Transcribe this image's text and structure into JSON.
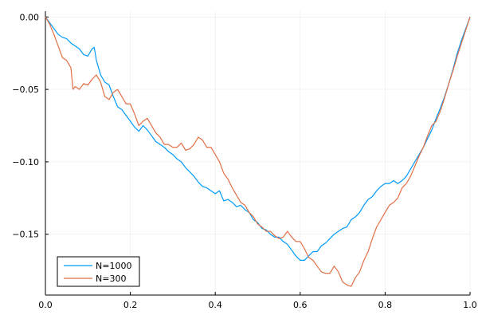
{
  "chart_data": {
    "type": "line",
    "title": "",
    "xlabel": "",
    "ylabel": "",
    "xlim": [
      0,
      1
    ],
    "ylim": [
      -0.192,
      0.004
    ],
    "grid": true,
    "legend_position": "bottom-left",
    "x_ticks": [
      0.0,
      0.2,
      0.4,
      0.6,
      0.8,
      1.0
    ],
    "x_tick_labels": [
      "0.0",
      "0.2",
      "0.4",
      "0.6",
      "0.8",
      "1.0"
    ],
    "y_ticks": [
      0.0,
      -0.05,
      -0.1,
      -0.15
    ],
    "y_tick_labels": [
      "0.00",
      "−0.05",
      "−0.10",
      "−0.15"
    ],
    "series": [
      {
        "name": "N=1000",
        "color": "#009AFA",
        "points": [
          [
            0.0,
            0.0
          ],
          [
            0.01,
            -0.004
          ],
          [
            0.02,
            -0.008
          ],
          [
            0.03,
            -0.012
          ],
          [
            0.04,
            -0.014
          ],
          [
            0.05,
            -0.015
          ],
          [
            0.06,
            -0.018
          ],
          [
            0.07,
            -0.02
          ],
          [
            0.08,
            -0.022
          ],
          [
            0.09,
            -0.026
          ],
          [
            0.1,
            -0.027
          ],
          [
            0.11,
            -0.022
          ],
          [
            0.115,
            -0.021
          ],
          [
            0.12,
            -0.03
          ],
          [
            0.13,
            -0.04
          ],
          [
            0.14,
            -0.045
          ],
          [
            0.15,
            -0.047
          ],
          [
            0.16,
            -0.055
          ],
          [
            0.17,
            -0.062
          ],
          [
            0.18,
            -0.064
          ],
          [
            0.19,
            -0.068
          ],
          [
            0.2,
            -0.072
          ],
          [
            0.21,
            -0.076
          ],
          [
            0.22,
            -0.079
          ],
          [
            0.23,
            -0.075
          ],
          [
            0.24,
            -0.078
          ],
          [
            0.25,
            -0.082
          ],
          [
            0.26,
            -0.086
          ],
          [
            0.27,
            -0.088
          ],
          [
            0.28,
            -0.09
          ],
          [
            0.29,
            -0.093
          ],
          [
            0.3,
            -0.095
          ],
          [
            0.31,
            -0.098
          ],
          [
            0.32,
            -0.1
          ],
          [
            0.33,
            -0.104
          ],
          [
            0.34,
            -0.107
          ],
          [
            0.35,
            -0.11
          ],
          [
            0.36,
            -0.114
          ],
          [
            0.37,
            -0.117
          ],
          [
            0.38,
            -0.118
          ],
          [
            0.39,
            -0.12
          ],
          [
            0.4,
            -0.122
          ],
          [
            0.41,
            -0.12
          ],
          [
            0.42,
            -0.127
          ],
          [
            0.43,
            -0.126
          ],
          [
            0.44,
            -0.128
          ],
          [
            0.45,
            -0.131
          ],
          [
            0.46,
            -0.13
          ],
          [
            0.47,
            -0.133
          ],
          [
            0.48,
            -0.135
          ],
          [
            0.49,
            -0.14
          ],
          [
            0.5,
            -0.142
          ],
          [
            0.51,
            -0.146
          ],
          [
            0.52,
            -0.147
          ],
          [
            0.53,
            -0.15
          ],
          [
            0.54,
            -0.152
          ],
          [
            0.55,
            -0.152
          ],
          [
            0.56,
            -0.155
          ],
          [
            0.57,
            -0.157
          ],
          [
            0.58,
            -0.161
          ],
          [
            0.59,
            -0.165
          ],
          [
            0.6,
            -0.168
          ],
          [
            0.61,
            -0.168
          ],
          [
            0.62,
            -0.165
          ],
          [
            0.63,
            -0.162
          ],
          [
            0.64,
            -0.162
          ],
          [
            0.65,
            -0.158
          ],
          [
            0.66,
            -0.156
          ],
          [
            0.67,
            -0.153
          ],
          [
            0.68,
            -0.15
          ],
          [
            0.69,
            -0.148
          ],
          [
            0.7,
            -0.146
          ],
          [
            0.71,
            -0.145
          ],
          [
            0.72,
            -0.14
          ],
          [
            0.73,
            -0.138
          ],
          [
            0.74,
            -0.135
          ],
          [
            0.75,
            -0.13
          ],
          [
            0.76,
            -0.126
          ],
          [
            0.77,
            -0.124
          ],
          [
            0.78,
            -0.12
          ],
          [
            0.79,
            -0.117
          ],
          [
            0.8,
            -0.115
          ],
          [
            0.81,
            -0.115
          ],
          [
            0.82,
            -0.113
          ],
          [
            0.83,
            -0.115
          ],
          [
            0.84,
            -0.113
          ],
          [
            0.85,
            -0.11
          ],
          [
            0.86,
            -0.105
          ],
          [
            0.87,
            -0.1
          ],
          [
            0.88,
            -0.095
          ],
          [
            0.89,
            -0.09
          ],
          [
            0.9,
            -0.084
          ],
          [
            0.91,
            -0.078
          ],
          [
            0.92,
            -0.07
          ],
          [
            0.93,
            -0.063
          ],
          [
            0.94,
            -0.055
          ],
          [
            0.95,
            -0.046
          ],
          [
            0.96,
            -0.036
          ],
          [
            0.97,
            -0.025
          ],
          [
            0.98,
            -0.016
          ],
          [
            0.99,
            -0.008
          ],
          [
            1.0,
            0.0
          ]
        ]
      },
      {
        "name": "N=300",
        "color": "#E26F46",
        "points": [
          [
            0.0,
            0.0
          ],
          [
            0.01,
            -0.005
          ],
          [
            0.02,
            -0.012
          ],
          [
            0.03,
            -0.02
          ],
          [
            0.04,
            -0.028
          ],
          [
            0.05,
            -0.03
          ],
          [
            0.06,
            -0.035
          ],
          [
            0.065,
            -0.05
          ],
          [
            0.07,
            -0.048
          ],
          [
            0.08,
            -0.05
          ],
          [
            0.09,
            -0.046
          ],
          [
            0.1,
            -0.047
          ],
          [
            0.11,
            -0.043
          ],
          [
            0.12,
            -0.04
          ],
          [
            0.13,
            -0.045
          ],
          [
            0.14,
            -0.055
          ],
          [
            0.15,
            -0.057
          ],
          [
            0.16,
            -0.052
          ],
          [
            0.17,
            -0.05
          ],
          [
            0.18,
            -0.055
          ],
          [
            0.19,
            -0.06
          ],
          [
            0.2,
            -0.06
          ],
          [
            0.21,
            -0.067
          ],
          [
            0.22,
            -0.075
          ],
          [
            0.23,
            -0.072
          ],
          [
            0.24,
            -0.07
          ],
          [
            0.25,
            -0.075
          ],
          [
            0.26,
            -0.08
          ],
          [
            0.27,
            -0.083
          ],
          [
            0.28,
            -0.088
          ],
          [
            0.29,
            -0.088
          ],
          [
            0.3,
            -0.09
          ],
          [
            0.31,
            -0.09
          ],
          [
            0.32,
            -0.087
          ],
          [
            0.33,
            -0.092
          ],
          [
            0.34,
            -0.091
          ],
          [
            0.35,
            -0.088
          ],
          [
            0.36,
            -0.083
          ],
          [
            0.37,
            -0.085
          ],
          [
            0.38,
            -0.09
          ],
          [
            0.39,
            -0.09
          ],
          [
            0.4,
            -0.095
          ],
          [
            0.41,
            -0.1
          ],
          [
            0.42,
            -0.108
          ],
          [
            0.43,
            -0.112
          ],
          [
            0.44,
            -0.118
          ],
          [
            0.45,
            -0.123
          ],
          [
            0.46,
            -0.128
          ],
          [
            0.47,
            -0.13
          ],
          [
            0.48,
            -0.135
          ],
          [
            0.49,
            -0.138
          ],
          [
            0.5,
            -0.143
          ],
          [
            0.51,
            -0.145
          ],
          [
            0.52,
            -0.148
          ],
          [
            0.53,
            -0.148
          ],
          [
            0.54,
            -0.151
          ],
          [
            0.55,
            -0.153
          ],
          [
            0.56,
            -0.152
          ],
          [
            0.57,
            -0.148
          ],
          [
            0.58,
            -0.152
          ],
          [
            0.59,
            -0.155
          ],
          [
            0.6,
            -0.155
          ],
          [
            0.61,
            -0.16
          ],
          [
            0.62,
            -0.166
          ],
          [
            0.63,
            -0.168
          ],
          [
            0.64,
            -0.172
          ],
          [
            0.65,
            -0.176
          ],
          [
            0.66,
            -0.177
          ],
          [
            0.67,
            -0.177
          ],
          [
            0.68,
            -0.172
          ],
          [
            0.69,
            -0.176
          ],
          [
            0.7,
            -0.183
          ],
          [
            0.71,
            -0.185
          ],
          [
            0.72,
            -0.186
          ],
          [
            0.73,
            -0.18
          ],
          [
            0.74,
            -0.176
          ],
          [
            0.75,
            -0.168
          ],
          [
            0.76,
            -0.162
          ],
          [
            0.77,
            -0.153
          ],
          [
            0.78,
            -0.145
          ],
          [
            0.79,
            -0.14
          ],
          [
            0.8,
            -0.135
          ],
          [
            0.81,
            -0.13
          ],
          [
            0.82,
            -0.128
          ],
          [
            0.83,
            -0.125
          ],
          [
            0.84,
            -0.118
          ],
          [
            0.85,
            -0.115
          ],
          [
            0.86,
            -0.11
          ],
          [
            0.87,
            -0.103
          ],
          [
            0.88,
            -0.096
          ],
          [
            0.89,
            -0.09
          ],
          [
            0.9,
            -0.082
          ],
          [
            0.91,
            -0.075
          ],
          [
            0.92,
            -0.072
          ],
          [
            0.93,
            -0.065
          ],
          [
            0.94,
            -0.056
          ],
          [
            0.95,
            -0.046
          ],
          [
            0.96,
            -0.037
          ],
          [
            0.97,
            -0.027
          ],
          [
            0.98,
            -0.018
          ],
          [
            0.99,
            -0.009
          ],
          [
            1.0,
            0.0
          ]
        ]
      }
    ]
  }
}
